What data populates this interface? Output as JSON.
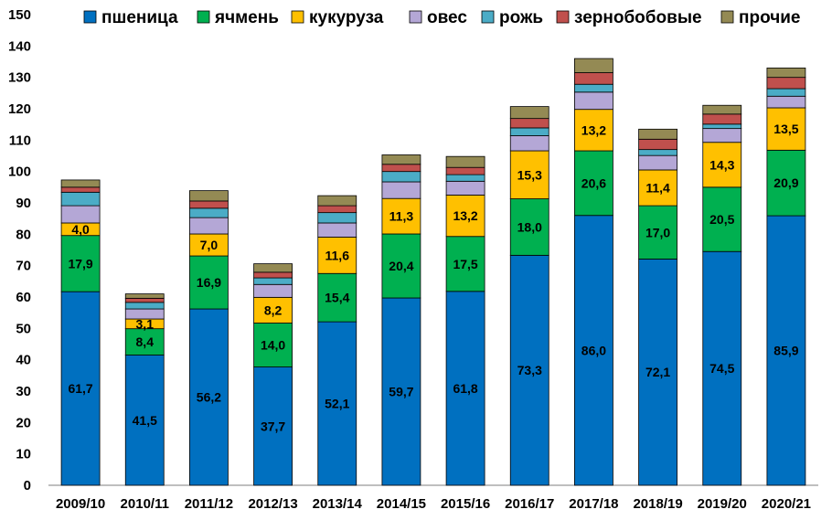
{
  "chart_data": {
    "type": "bar",
    "stacked": true,
    "title": "",
    "xlabel": "",
    "ylabel": "",
    "ylim": [
      0,
      150
    ],
    "ytick_step": 10,
    "grid": false,
    "legend_position": "top",
    "categories": [
      "2009/10",
      "2010/11",
      "2011/12",
      "2012/13",
      "2013/14",
      "2014/15",
      "2015/16",
      "2016/17",
      "2017/18",
      "2018/19",
      "2019/20",
      "2020/21"
    ],
    "series": [
      {
        "name": "пшеница",
        "color": "#0070C0",
        "values": [
          61.7,
          41.5,
          56.2,
          37.7,
          52.1,
          59.7,
          61.8,
          73.3,
          86.0,
          72.1,
          74.5,
          85.9
        ],
        "labels": [
          "61,7",
          "41,5",
          "56,2",
          "37,7",
          "52,1",
          "59,7",
          "61,8",
          "73,3",
          "86,0",
          "72,1",
          "74,5",
          "85,9"
        ]
      },
      {
        "name": "ячмень",
        "color": "#00B050",
        "values": [
          17.9,
          8.4,
          16.9,
          14.0,
          15.4,
          20.4,
          17.5,
          18.0,
          20.6,
          17.0,
          20.5,
          20.9
        ],
        "labels": [
          "17,9",
          "8,4",
          "16,9",
          "14,0",
          "15,4",
          "20,4",
          "17,5",
          "18,0",
          "20,6",
          "17,0",
          "20,5",
          "20,9"
        ]
      },
      {
        "name": "кукуруза",
        "color": "#FFC000",
        "values": [
          4.0,
          3.1,
          7.0,
          8.2,
          11.6,
          11.3,
          13.2,
          15.3,
          13.2,
          11.4,
          14.3,
          13.5
        ],
        "labels": [
          "4,0",
          "3,1",
          "7,0",
          "8,2",
          "11,6",
          "11,3",
          "13,2",
          "15,3",
          "13,2",
          "11,4",
          "14,3",
          "13,5"
        ]
      },
      {
        "name": "овес",
        "color": "#B4A7D6",
        "values": [
          5.5,
          3.2,
          5.2,
          4.1,
          4.5,
          5.3,
          4.4,
          4.8,
          5.5,
          4.6,
          4.4,
          3.7
        ]
      },
      {
        "name": "рожь",
        "color": "#4BACC6",
        "values": [
          4.3,
          2.1,
          3.0,
          2.1,
          3.3,
          3.3,
          2.1,
          2.5,
          2.5,
          1.9,
          1.4,
          2.4
        ]
      },
      {
        "name": "зернобобовые",
        "color": "#C0504D",
        "values": [
          1.6,
          1.3,
          2.3,
          1.8,
          2.2,
          2.3,
          2.3,
          3.0,
          3.7,
          3.3,
          3.2,
          3.6
        ]
      },
      {
        "name": "прочие",
        "color": "#948A54",
        "values": [
          2.3,
          1.4,
          3.3,
          2.7,
          3.2,
          3.0,
          3.5,
          3.8,
          4.5,
          3.2,
          2.8,
          3.0
        ]
      }
    ]
  }
}
